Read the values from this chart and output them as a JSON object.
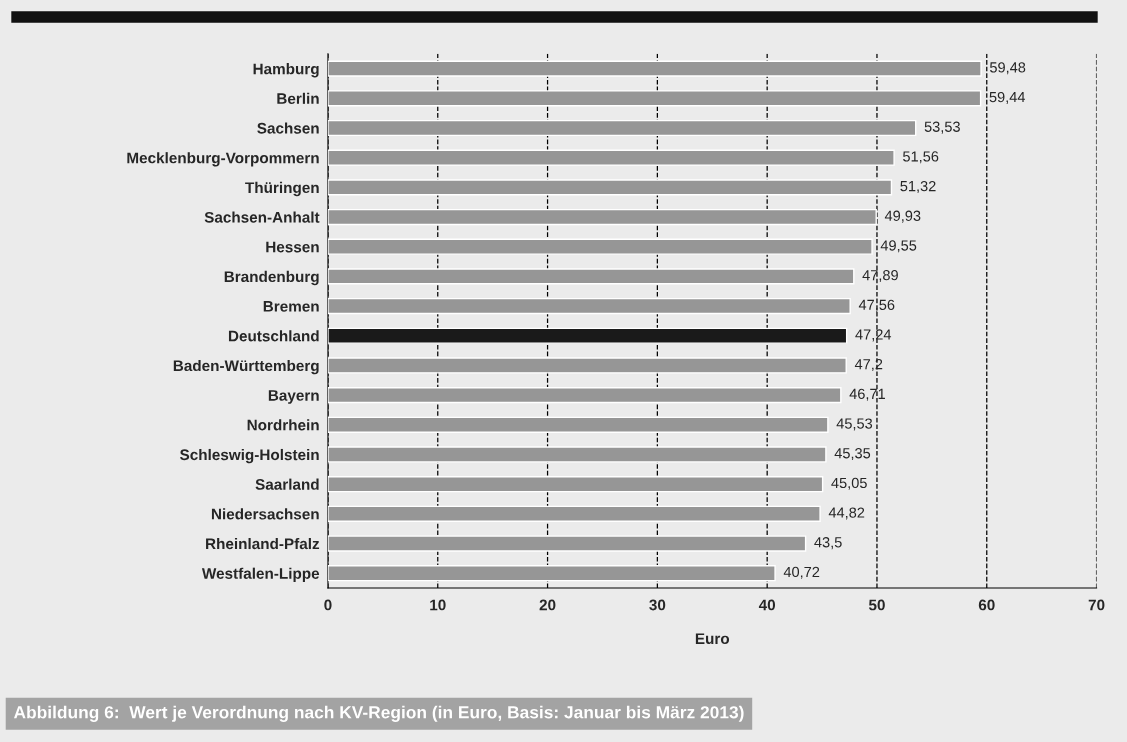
{
  "chart_data": {
    "type": "bar",
    "orientation": "horizontal",
    "xlabel": "Euro",
    "categories": [
      "Hamburg",
      "Berlin",
      "Sachsen",
      "Mecklenburg-Vorpommern",
      "Thüringen",
      "Sachsen-Anhalt",
      "Hessen",
      "Brandenburg",
      "Bremen",
      "Deutschland",
      "Baden-Württemberg",
      "Bayern",
      "Nordrhein",
      "Schleswig-Holstein",
      "Saarland",
      "Niedersachsen",
      "Rheinland-Pfalz",
      "Westfalen-Lippe"
    ],
    "values": [
      59.48,
      59.44,
      53.53,
      51.56,
      51.32,
      49.93,
      49.55,
      47.89,
      47.56,
      47.24,
      47.2,
      46.71,
      45.53,
      45.35,
      45.05,
      44.82,
      43.5,
      40.72
    ],
    "value_labels": [
      "59,48",
      "59,44",
      "53,53",
      "51,56",
      "51,32",
      "49,93",
      "49,55",
      "47,89",
      "47,56",
      "47,24",
      "47,2",
      "46,71",
      "45,53",
      "45,35",
      "45,05",
      "44,82",
      "43,5",
      "40,72"
    ],
    "colors": [
      "#969696",
      "#969696",
      "#969696",
      "#969696",
      "#969696",
      "#969696",
      "#969696",
      "#969696",
      "#969696",
      "#1a1a1a",
      "#969696",
      "#969696",
      "#969696",
      "#969696",
      "#969696",
      "#969696",
      "#969696",
      "#969696"
    ],
    "xlim": [
      0,
      70
    ],
    "xticks": [
      0,
      10,
      20,
      30,
      40,
      50,
      60,
      70
    ],
    "grid": "x",
    "line_style": "dashed",
    "annotations": [
      "Abbildung 6:  Wert je Verordnung nach KV-Region (in Euro, Basis: Januar bis März 2013)"
    ]
  }
}
